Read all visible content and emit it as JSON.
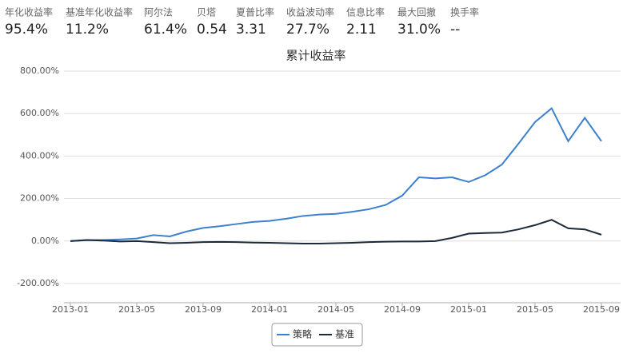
{
  "metrics": [
    {
      "label": "年化收益率",
      "value": "95.4%"
    },
    {
      "label": "基准年化收益率",
      "value": "11.2%"
    },
    {
      "label": "阿尔法",
      "value": "61.4%"
    },
    {
      "label": "贝塔",
      "value": "0.54"
    },
    {
      "label": "夏普比率",
      "value": "3.31"
    },
    {
      "label": "收益波动率",
      "value": "27.7%"
    },
    {
      "label": "信息比率",
      "value": "2.11"
    },
    {
      "label": "最大回撤",
      "value": "31.0%"
    },
    {
      "label": "换手率",
      "value": "--"
    }
  ],
  "chart_data": {
    "type": "line",
    "title": "累计收益率",
    "categories": [
      "2013-01",
      null,
      null,
      null,
      "2013-05",
      null,
      null,
      null,
      "2013-09",
      null,
      null,
      null,
      "2014-01",
      null,
      null,
      null,
      "2014-05",
      null,
      null,
      null,
      "2014-09",
      null,
      null,
      null,
      "2015-01",
      null,
      null,
      null,
      "2015-05",
      null,
      null,
      null,
      "2015-09"
    ],
    "series": [
      {
        "name": "策略",
        "color": "#3d80d0",
        "values": [
          0,
          4,
          5,
          8,
          12,
          28,
          22,
          45,
          62,
          70,
          80,
          90,
          95,
          105,
          118,
          125,
          128,
          138,
          150,
          170,
          214,
          300,
          295,
          300,
          278,
          310,
          360,
          458,
          560,
          625,
          470,
          580,
          470
        ]
      },
      {
        "name": "基准",
        "color": "#1c2b3a",
        "values": [
          0,
          5,
          2,
          -2,
          0,
          -5,
          -10,
          -8,
          -5,
          -4,
          -5,
          -7,
          -8,
          -10,
          -12,
          -12,
          -10,
          -8,
          -5,
          -3,
          -2,
          -2,
          0,
          15,
          35,
          38,
          40,
          55,
          75,
          100,
          60,
          55,
          30
        ]
      }
    ],
    "ylim": [
      -290,
      800
    ],
    "yticks": [
      {
        "value": -200,
        "label": "-200.00%"
      },
      {
        "value": 0,
        "label": "0.00%"
      },
      {
        "value": 200,
        "label": "200.00%"
      },
      {
        "value": 400,
        "label": "400.00%"
      },
      {
        "value": 600,
        "label": "600.00%"
      },
      {
        "value": 800,
        "label": "800.00%"
      }
    ],
    "grid": true,
    "legend": "bottom"
  }
}
